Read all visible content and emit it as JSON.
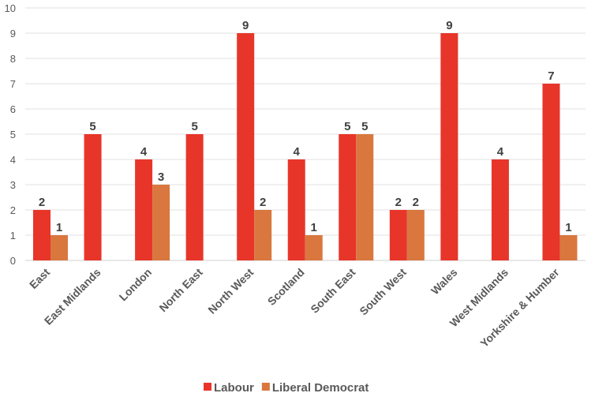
{
  "chart_data": {
    "type": "bar",
    "categories": [
      "East",
      "East Midlands",
      "London",
      "North East",
      "North West",
      "Scotland",
      "South East",
      "South West",
      "Wales",
      "West Midlands",
      "Yorkshire & Humber"
    ],
    "series": [
      {
        "name": "Labour",
        "color": "#e8352a",
        "values": [
          2,
          5,
          4,
          5,
          9,
          4,
          5,
          2,
          9,
          4,
          7
        ]
      },
      {
        "name": "Liberal Democrat",
        "color": "#d9773f",
        "values": [
          1,
          null,
          3,
          null,
          2,
          1,
          5,
          2,
          null,
          null,
          1
        ]
      }
    ],
    "ylim": [
      0,
      10
    ],
    "yticks": [
      0,
      1,
      2,
      3,
      4,
      5,
      6,
      7,
      8,
      9,
      10
    ],
    "grid": true,
    "legend": "bottom",
    "data_labels": true
  }
}
